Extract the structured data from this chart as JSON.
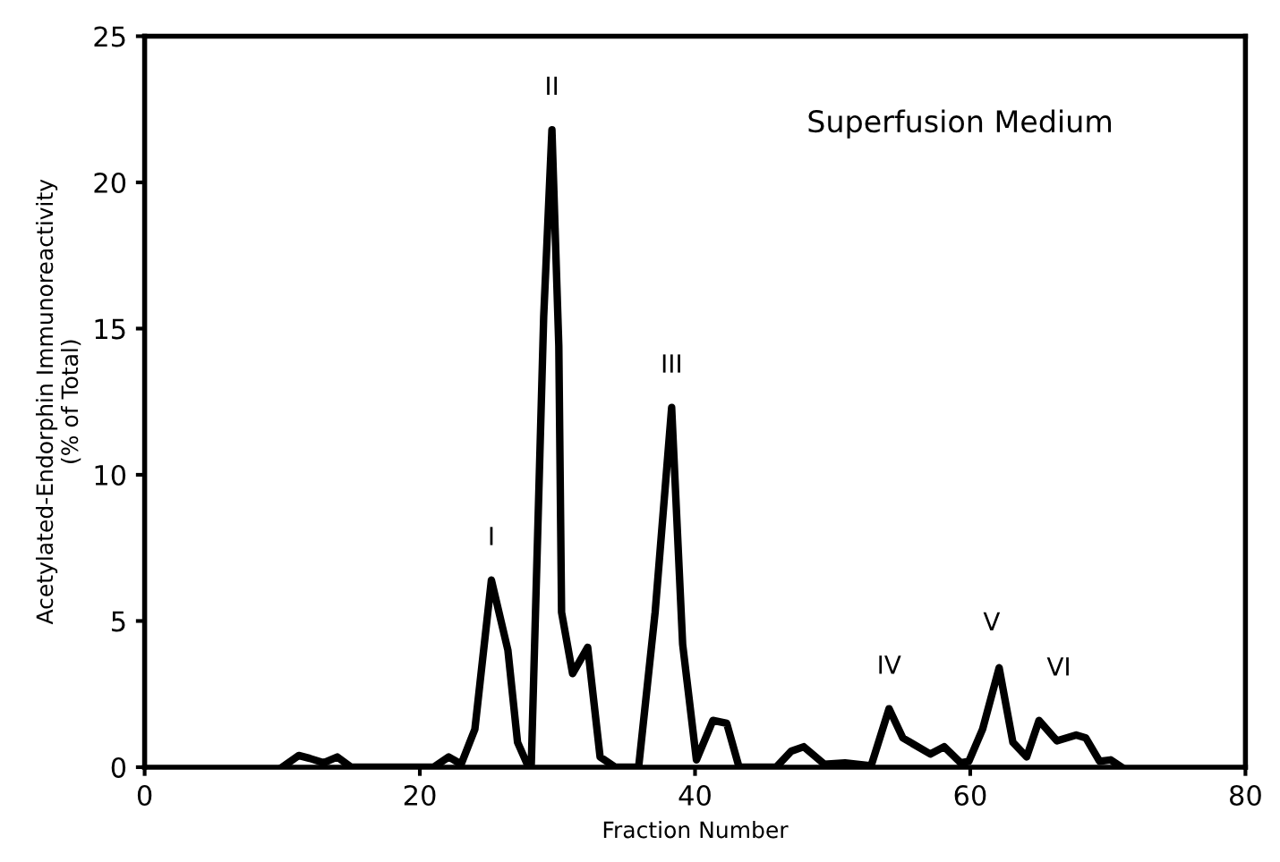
{
  "chart_data": {
    "type": "line",
    "xlabel": "Fraction Number",
    "ylabel": "Acetylated-Endorphin Immunoreactivity\n(% of Total)",
    "x": [
      10,
      11.2,
      12,
      13,
      14,
      15,
      21,
      22.1,
      23,
      24,
      25.2,
      26.4,
      27.1,
      27.9,
      28.1,
      29.0,
      29.6,
      30.1,
      30.3,
      31.1,
      32.2,
      33.1,
      34.2,
      35.9,
      37.1,
      38.3,
      39.1,
      40.1,
      41.3,
      42.3,
      43.2,
      45.9,
      47,
      47.9,
      49.4,
      50.9,
      52.8,
      54.1,
      55.1,
      57.1,
      58.1,
      59.3,
      59.9,
      60.9,
      62.1,
      63.1,
      64.1,
      65,
      66.3,
      67.7,
      68.4,
      69.4,
      70.2,
      71
    ],
    "series": [
      {
        "color": "#000000",
        "values": [
          0,
          0.4,
          0.3,
          0.15,
          0.35,
          0,
          0,
          0.35,
          0.1,
          1.3,
          6.4,
          4.0,
          0.85,
          0,
          0.1,
          15.4,
          21.8,
          14.4,
          5.3,
          3.2,
          4.1,
          0.35,
          0,
          0,
          5.3,
          12.3,
          4.2,
          0.25,
          1.6,
          1.5,
          0,
          0,
          0.55,
          0.7,
          0.1,
          0.15,
          0.05,
          2.0,
          1.0,
          0.45,
          0.7,
          0.15,
          0.2,
          1.3,
          3.4,
          0.85,
          0.35,
          1.6,
          0.9,
          1.1,
          1.0,
          0.2,
          0.25,
          0
        ]
      }
    ],
    "xlim": [
      0,
      80
    ],
    "xticks": [
      0,
      20,
      40,
      60,
      80
    ],
    "ylim": [
      0,
      25
    ],
    "yticks": [
      0,
      5,
      10,
      15,
      20,
      25
    ],
    "grid": false,
    "legend": false,
    "marker": "none",
    "line_style": "solid",
    "annotations": [
      "Superfusion Medium",
      {
        "text": "I",
        "x": 25.2,
        "y": 6.4
      },
      {
        "text": "II",
        "x": 29.6,
        "y": 21.8
      },
      {
        "text": "III",
        "x": 38.3,
        "y": 12.3
      },
      {
        "text": "IV",
        "x": 54.1,
        "y": 2.0
      },
      {
        "text": "V",
        "x": 62.1,
        "y": 3.4
      },
      {
        "text": "VI",
        "x": 65,
        "y": 1.6
      }
    ]
  }
}
